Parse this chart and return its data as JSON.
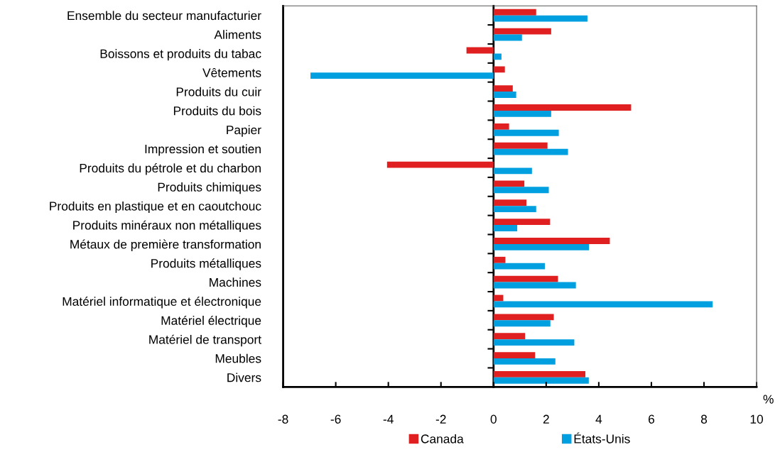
{
  "chart_data": {
    "type": "bar",
    "orientation": "horizontal",
    "xlabel": "%",
    "categories": [
      "Ensemble du secteur manufacturier",
      "Aliments",
      "Boissons et produits du tabac",
      "Vêtements",
      "Produits du cuir",
      "Produits du bois",
      "Papier",
      "Impression et soutien",
      "Produits du pétrole et du charbon",
      "Produits chimiques",
      "Produits en plastique et en caoutchouc",
      "Produits minéraux non métalliques",
      "Métaux de première transformation",
      "Produits métalliques",
      "Machines",
      "Matériel informatique et électronique",
      "Matériel électrique",
      "Matériel de transport",
      "Meubles",
      "Divers"
    ],
    "series": [
      {
        "name": "Canada",
        "color": "#e02020",
        "values": [
          1.62,
          2.19,
          -1.03,
          0.43,
          0.73,
          5.23,
          0.59,
          2.05,
          -4.05,
          1.17,
          1.25,
          2.15,
          4.42,
          0.45,
          2.45,
          0.37,
          2.29,
          1.2,
          1.58,
          3.49
        ]
      },
      {
        "name": "États-Unis",
        "color": "#00a0e0",
        "values": [
          3.57,
          1.08,
          0.3,
          -6.96,
          0.86,
          2.19,
          2.48,
          2.83,
          1.46,
          2.1,
          1.62,
          0.9,
          3.63,
          1.95,
          3.13,
          8.33,
          2.16,
          3.07,
          2.35,
          3.62
        ]
      }
    ],
    "xlim": [
      -8,
      10
    ],
    "xticks": [
      -8,
      -6,
      -4,
      -2,
      0,
      2,
      4,
      6,
      8,
      10
    ],
    "legend": "bottom"
  }
}
